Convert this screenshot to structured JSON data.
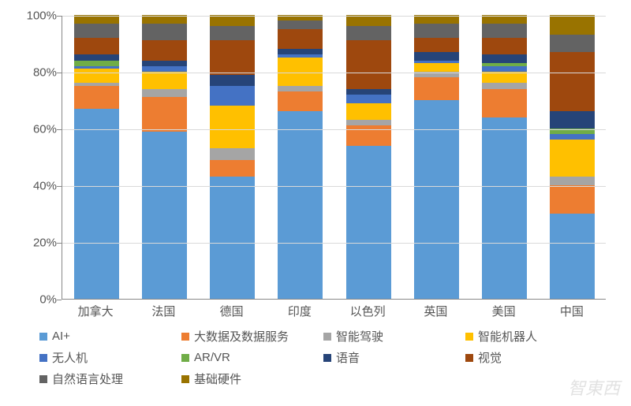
{
  "chart": {
    "type": "stacked-bar-100",
    "background_color": "#ffffff",
    "grid_color": "#d9d9d9",
    "axis_color": "#888888",
    "label_color": "#555555",
    "label_fontsize": 15,
    "axis_fontsize": 15,
    "ylim": [
      0,
      100
    ],
    "ytick_step": 20,
    "y_ticks": [
      "0%",
      "20%",
      "40%",
      "60%",
      "80%",
      "100%"
    ],
    "bar_width_ratio": 0.66,
    "categories": [
      "加拿大",
      "法国",
      "德国",
      "印度",
      "以色列",
      "英国",
      "美国",
      "中国"
    ],
    "series": [
      {
        "name": "AI+",
        "color": "#5b9bd5"
      },
      {
        "name": "大数据及数据服务",
        "color": "#ed7d31"
      },
      {
        "name": "智能驾驶",
        "color": "#a5a5a5"
      },
      {
        "name": "智能机器人",
        "color": "#ffc000"
      },
      {
        "name": "无人机",
        "color": "#4472c4"
      },
      {
        "name": "AR/VR",
        "color": "#70ad47"
      },
      {
        "name": "语音",
        "color": "#264478"
      },
      {
        "name": "视觉",
        "color": "#9e480e"
      },
      {
        "name": "自然语言处理",
        "color": "#636363"
      },
      {
        "name": "基础硬件",
        "color": "#997300"
      }
    ],
    "data": [
      [
        67,
        8,
        1,
        5,
        1,
        2,
        2,
        6,
        5,
        3
      ],
      [
        59,
        12,
        3,
        6,
        2,
        0,
        2,
        7,
        6,
        3
      ],
      [
        43,
        6,
        4,
        15,
        7,
        0,
        4,
        12,
        5,
        4
      ],
      [
        66,
        7,
        2,
        10,
        1,
        0,
        2,
        7,
        3,
        2
      ],
      [
        54,
        7,
        2,
        6,
        3,
        0,
        2,
        17,
        5,
        4
      ],
      [
        70,
        8,
        2,
        3,
        1,
        0,
        3,
        5,
        5,
        3
      ],
      [
        64,
        10,
        2,
        4,
        2,
        1,
        3,
        6,
        5,
        3
      ],
      [
        30,
        10,
        3,
        13,
        2,
        2,
        6,
        21,
        6,
        7
      ]
    ]
  },
  "watermark": "智東西"
}
